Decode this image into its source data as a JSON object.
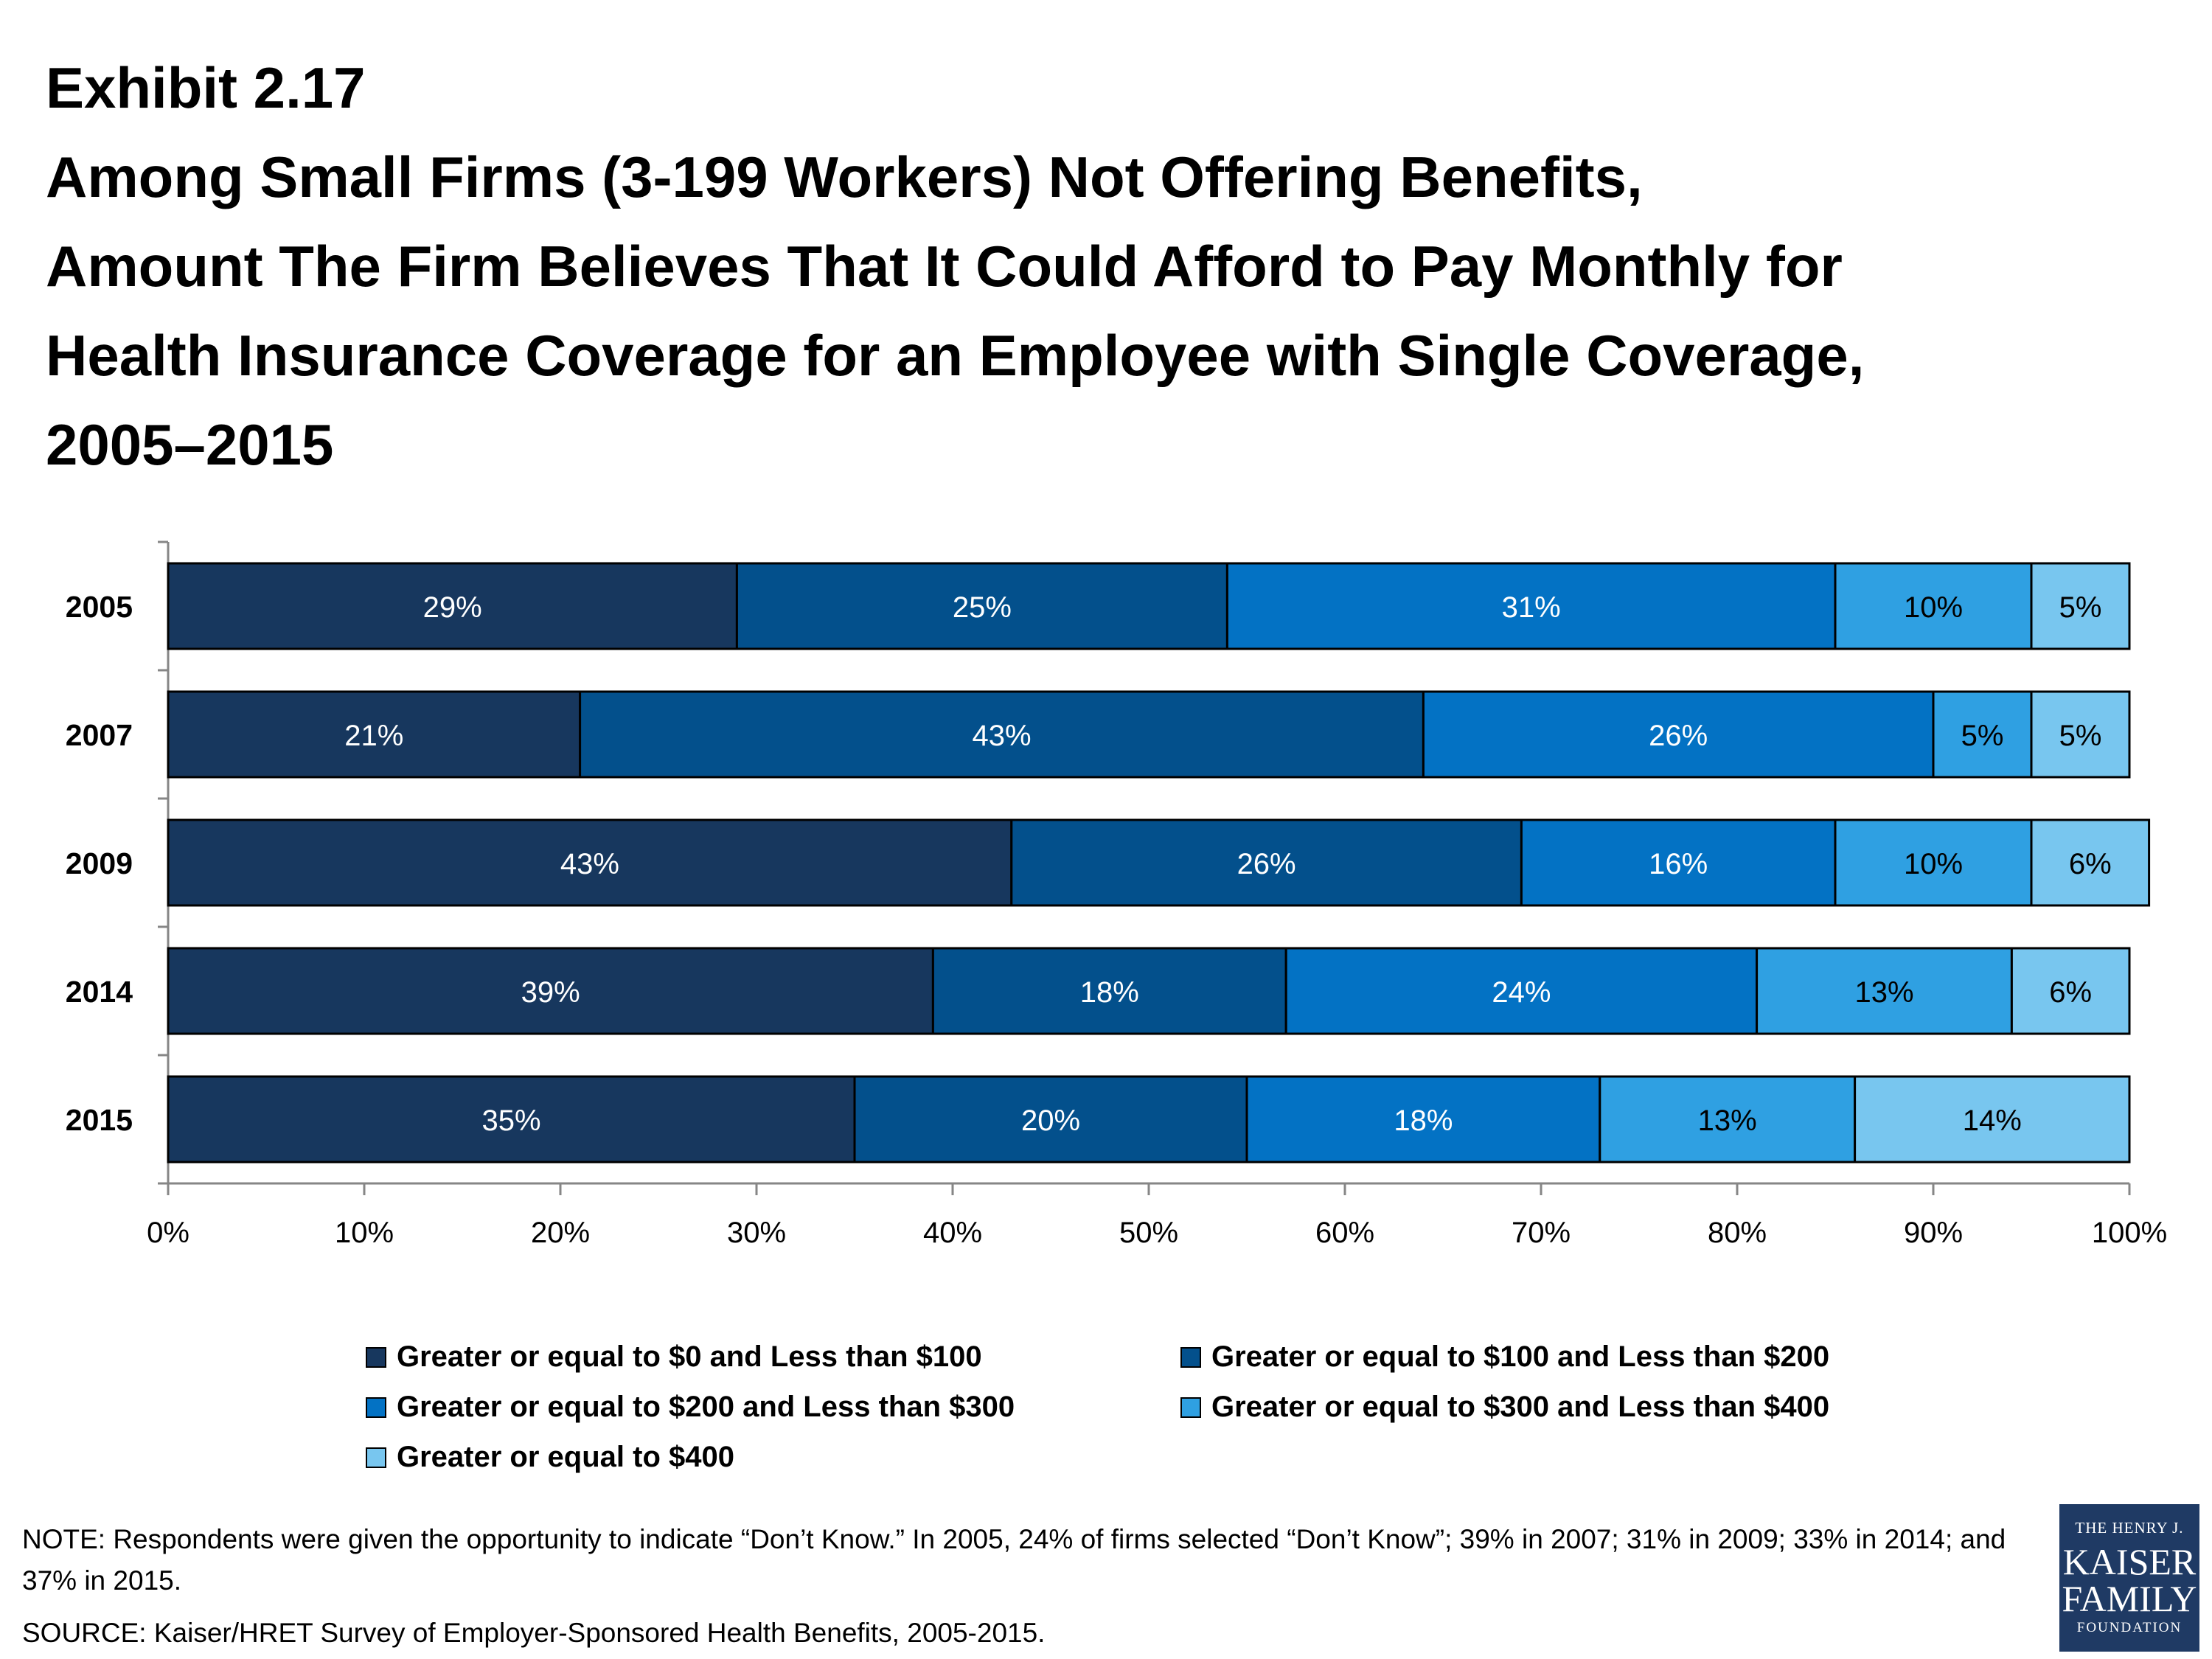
{
  "header": {
    "exhibit": "Exhibit 2.17",
    "title": "Among Small Firms (3-199 Workers) Not Offering Benefits,\nAmount The Firm Believes That It Could Afford to Pay Monthly for\nHealth Insurance Coverage for an Employee with Single Coverage,\n2005–2015"
  },
  "chart_data": {
    "type": "bar",
    "orientation": "horizontal",
    "stacked": true,
    "categories": [
      "2005",
      "2007",
      "2009",
      "2014",
      "2015"
    ],
    "series": [
      {
        "name": "Greater or equal to $0 and Less than $100",
        "values": [
          29,
          21,
          43,
          39,
          35
        ],
        "color": "#17375e"
      },
      {
        "name": "Greater or equal to $100 and Less than $200",
        "values": [
          25,
          43,
          26,
          18,
          20
        ],
        "color": "#03508c"
      },
      {
        "name": "Greater or equal to $200 and Less than $300",
        "values": [
          31,
          26,
          16,
          24,
          18
        ],
        "color": "#0372c4"
      },
      {
        "name": "Greater or equal to $300 and Less than $400",
        "values": [
          10,
          5,
          10,
          13,
          13
        ],
        "color": "#2fa0e2"
      },
      {
        "name": "Greater or equal to $400",
        "values": [
          5,
          5,
          6,
          6,
          14
        ],
        "color": "#78c6ef"
      }
    ],
    "xlim": [
      0,
      100
    ],
    "xticks": [
      "0%",
      "10%",
      "20%",
      "30%",
      "40%",
      "50%",
      "60%",
      "70%",
      "80%",
      "90%",
      "100%"
    ],
    "value_suffix": "%",
    "legend_position": "bottom",
    "grid": false
  },
  "footer": {
    "note": "NOTE:  Respondents were given the opportunity to indicate “Don’t Know.”  In 2005, 24% of firms selected “Don’t Know”; 39% in 2007; 31% in 2009; 33% in 2014; and 37% in 2015.",
    "source": "SOURCE: Kaiser/HRET Survey of Employer-Sponsored Health Benefits, 2005-2015."
  },
  "logo": {
    "line1": "THE HENRY J.",
    "line2": "KAISER",
    "line3": "FAMILY",
    "line4": "FOUNDATION"
  }
}
